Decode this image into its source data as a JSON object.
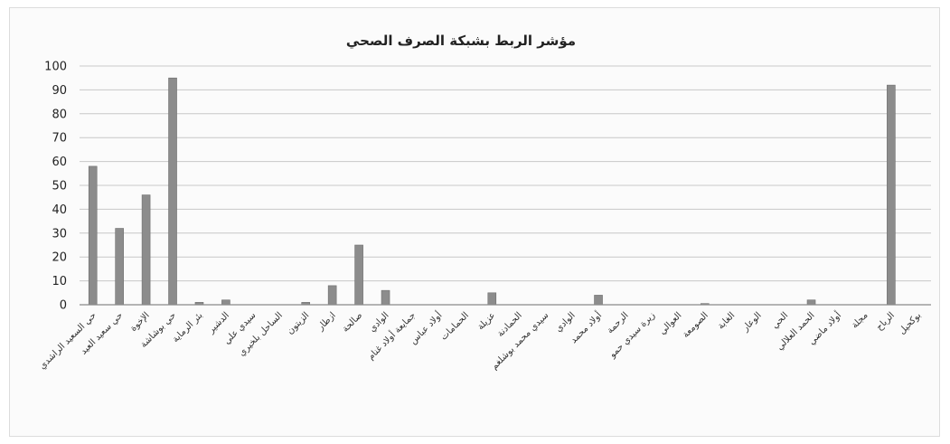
{
  "chart_data": {
    "type": "bar",
    "title": "مؤشر الربط بشبكة الصرف الصحي",
    "ylim": [
      0,
      100
    ],
    "yticks": [
      0,
      10,
      20,
      30,
      40,
      50,
      60,
      70,
      80,
      90,
      100
    ],
    "grid": true,
    "legend": "none",
    "bar_color": "#8c8c8c",
    "categories": [
      "حي السعيد الراشدي",
      "حي سعيد العيد",
      "الإخوة",
      "حي بوشاشة",
      "بئر الرماية",
      "الدشير",
      "سيدي علي",
      "الساحل بلخيري",
      "الزيتون",
      "ازطار",
      "صالحة",
      "الوادي",
      "جمايعة أولاد غنام",
      "أولاد عباس",
      "الحمامات",
      "عزيلة",
      "الحمادنة",
      "سيدي محمد بوشلغم",
      "الوادي",
      "أولاد محمد",
      "الرحمة",
      "زيرة سيدي حمو",
      "العوالي",
      "الصومعة",
      "الغابة",
      "الوعار",
      "الحي",
      "الحمد العلالي",
      "أولاد ماضي",
      "مجلة",
      "الرباح",
      "بوكحيل"
    ],
    "values": [
      58,
      32,
      46,
      95,
      1,
      2,
      0,
      0,
      1,
      8,
      25,
      6,
      0,
      0,
      0,
      5,
      0,
      0,
      0,
      4,
      0,
      0,
      0,
      0.5,
      0,
      0,
      0,
      2,
      0,
      0,
      92,
      0
    ]
  }
}
